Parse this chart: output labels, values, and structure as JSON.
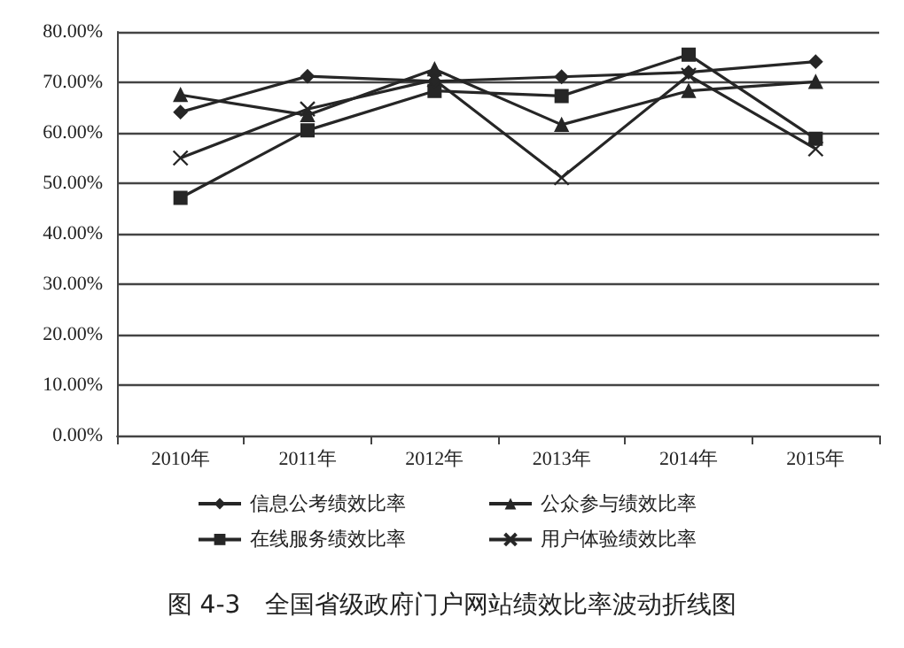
{
  "chart_data": {
    "type": "line",
    "title": "图 4-3　全国省级政府门户网站绩效比率波动折线图",
    "categories": [
      "2010年",
      "2011年",
      "2012年",
      "2013年",
      "2014年",
      "2015年"
    ],
    "series": [
      {
        "name": "信息公考绩效比率",
        "color": "#262626",
        "marker": "diamond",
        "values": [
          64.1,
          71.2,
          70.2,
          71.1,
          72,
          74.1
        ]
      },
      {
        "name": "公众参与绩效比率",
        "color": "#262626",
        "marker": "triangle",
        "values": [
          67.5,
          63.5,
          72.6,
          61.6,
          68.3,
          70.1
        ]
      },
      {
        "name": "在线服务绩效比率",
        "color": "#262626",
        "marker": "square",
        "values": [
          47.1,
          60.5,
          68.3,
          67.3,
          75.5,
          58.8
        ]
      },
      {
        "name": "用户体验绩效比率",
        "color": "#262626",
        "marker": "cross",
        "values": [
          55,
          64.7,
          70.5,
          51.1,
          71.4,
          56.8
        ]
      }
    ],
    "ylim": [
      0,
      80
    ],
    "yticks": [
      {
        "value": 0,
        "label": "0.00%"
      },
      {
        "value": 10,
        "label": "10.00%"
      },
      {
        "value": 20,
        "label": "20.00%"
      },
      {
        "value": 30,
        "label": "30.00%"
      },
      {
        "value": 40,
        "label": "40.00%"
      },
      {
        "value": 50,
        "label": "50.00%"
      },
      {
        "value": 60,
        "label": "60.00%"
      },
      {
        "value": 70,
        "label": "70.00%"
      },
      {
        "value": 80,
        "label": "80.00%"
      }
    ],
    "grid": "y",
    "legend": "bottom",
    "line_style": "solid"
  }
}
